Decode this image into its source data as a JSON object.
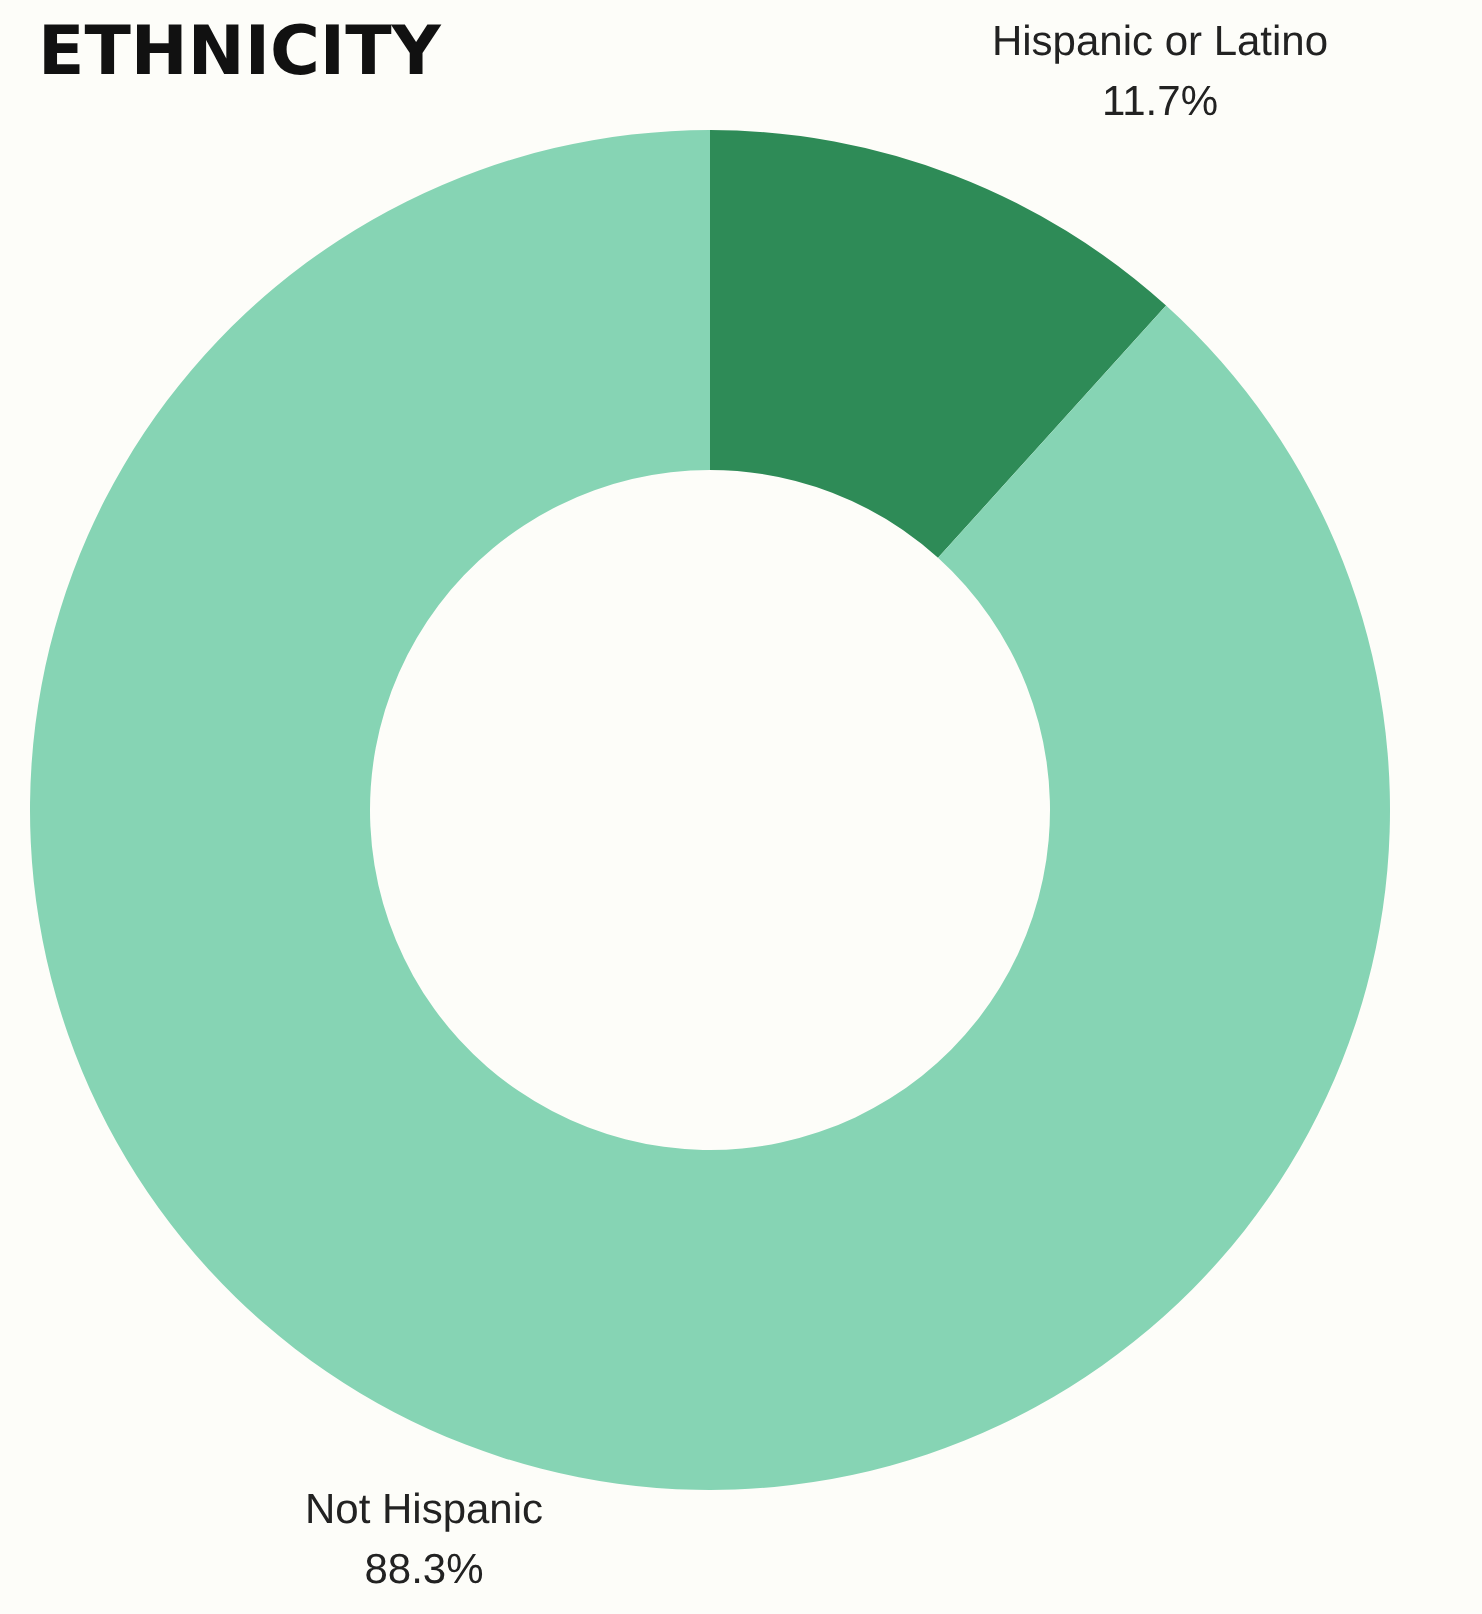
{
  "chart_data": {
    "type": "donut",
    "title": "ETHNICITY",
    "categories": [
      "Hispanic or Latino",
      "Not Hispanic"
    ],
    "values": [
      11.7,
      88.3
    ],
    "value_labels": [
      "11.7%",
      "88.3%"
    ],
    "colors": [
      "#2e8b57",
      "#86d4b4"
    ]
  }
}
